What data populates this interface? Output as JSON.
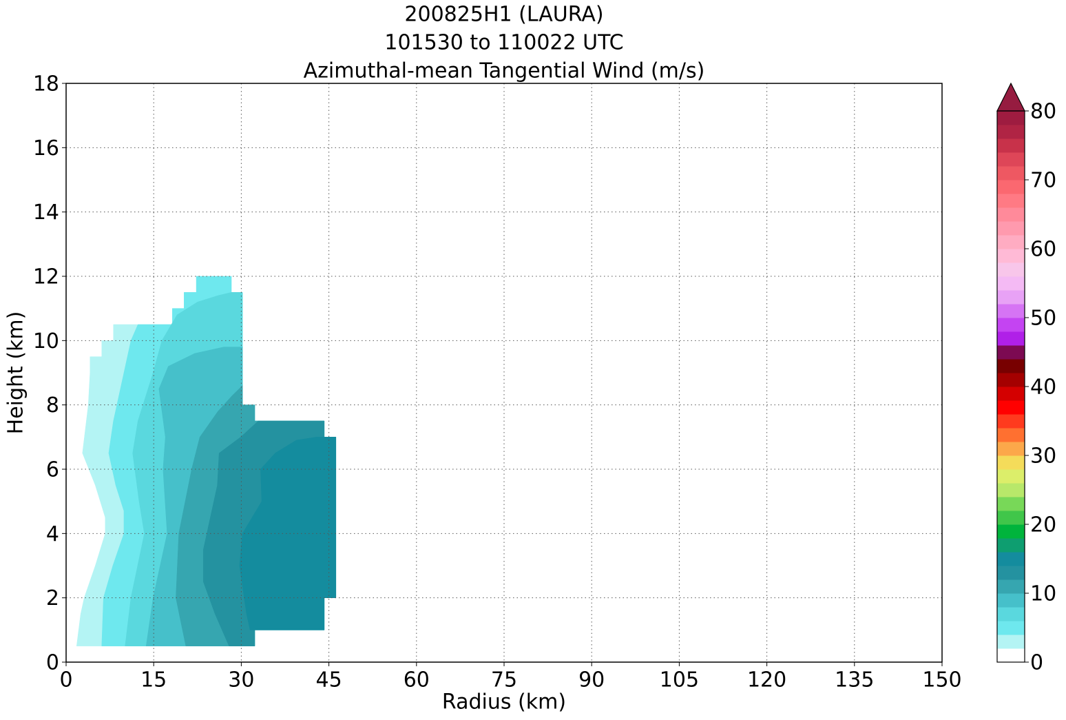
{
  "chart_data": {
    "type": "contourf",
    "title": [
      "200825H1 (LAURA)",
      "101530 to 110022 UTC",
      "Azimuthal-mean Tangential Wind (m/s)"
    ],
    "x_label": "Radius (km)",
    "y_label": "Height (km)",
    "xlim": [
      0,
      150
    ],
    "ylim": [
      0,
      18
    ],
    "xticks": [
      0,
      15,
      30,
      45,
      60,
      75,
      90,
      105,
      120,
      135,
      150
    ],
    "yticks": [
      0,
      2,
      4,
      6,
      8,
      10,
      12,
      14,
      16,
      18
    ],
    "grid": true,
    "colorbar": {
      "levels": [
        0,
        2,
        4,
        6,
        8,
        10,
        12,
        14,
        16,
        18,
        20,
        22,
        24,
        26,
        28,
        30,
        32,
        34,
        36,
        38,
        40,
        42,
        44,
        46,
        48,
        50,
        52,
        54,
        56,
        58,
        60,
        62,
        64,
        66,
        68,
        70,
        72,
        74,
        76,
        78,
        80
      ],
      "colors": [
        "#ffffff",
        "#b4f4f4",
        "#6ee8ee",
        "#5ad8de",
        "#46c0ca",
        "#36a6b0",
        "#2492a0",
        "#148c9e",
        "#0e9e70",
        "#00b43c",
        "#40c64a",
        "#78d858",
        "#b8e86a",
        "#dcee6a",
        "#f4dc5a",
        "#fca84a",
        "#ff7030",
        "#ff3a1e",
        "#ff0000",
        "#d40000",
        "#a40000",
        "#780000",
        "#7c0a52",
        "#b020e8",
        "#c444f2",
        "#d674f4",
        "#e8a2f6",
        "#f4baf4",
        "#f8c6ea",
        "#ffbad6",
        "#ffacc2",
        "#ff9aae",
        "#ff8a9a",
        "#ff7a84",
        "#fb6870",
        "#ee5862",
        "#de4658",
        "#c8324a",
        "#b02444",
        "#9e1c40"
      ],
      "extend_color": "#961c40",
      "ticks": [
        0,
        10,
        20,
        30,
        40,
        50,
        60,
        70,
        80
      ]
    },
    "regions": [
      {
        "level": 2,
        "r": [
          1.8,
          2.5,
          3.1,
          5,
          6.7,
          6.7,
          5,
          2.8,
          3.8,
          4.1,
          4.1,
          6.1,
          6.1,
          8.1,
          8.1,
          18.2,
          18.2,
          20.2,
          20.2,
          22.3,
          22.3,
          28.3,
          28.3,
          30.2,
          30.2,
          32.3,
          32.3,
          44.2,
          44.2,
          46.2,
          46.2,
          44.2,
          44.2,
          32.3,
          32.3
        ],
        "h": [
          0.5,
          1.5,
          2,
          3,
          4,
          4.5,
          5.5,
          6.5,
          8,
          9,
          9.5,
          9.5,
          10,
          10,
          10.5,
          10.5,
          11,
          11,
          11.5,
          11.5,
          12,
          12,
          11.5,
          11.5,
          8,
          8,
          7.5,
          7.5,
          7,
          7,
          2,
          2,
          1,
          1,
          0.5
        ]
      },
      {
        "level": 4,
        "r": [
          6.1,
          6.4,
          8,
          9.9,
          9.9,
          8.5,
          7.3,
          8.1,
          10.5,
          11.1,
          12.3,
          18.2,
          18.2,
          20.2,
          20.2,
          22.3,
          22.3,
          28.3,
          28.3,
          30.2,
          30.2,
          32.3,
          32.3,
          44.2,
          44.2,
          46.2,
          46.2,
          44.2,
          44.2,
          32.3,
          32.3
        ],
        "h": [
          0.5,
          2,
          3,
          4,
          4.7,
          5.5,
          6.5,
          7.5,
          9.5,
          10,
          10.5,
          10.5,
          11,
          11,
          11.5,
          11.5,
          12,
          12,
          11.5,
          11.5,
          8,
          8,
          7.5,
          7.5,
          7,
          7,
          2,
          2,
          1,
          1,
          0.5
        ]
      },
      {
        "level": 6,
        "r": [
          10.1,
          11.1,
          13.4,
          12.5,
          11.4,
          12.3,
          14.9,
          16.4,
          19,
          22.5,
          26,
          28.3,
          30.2,
          30.2,
          32.3,
          32.3,
          44.2,
          44.2,
          46.2,
          46.2,
          44.2,
          44.2,
          32.3,
          32.3
        ],
        "h": [
          0.5,
          2,
          4,
          5,
          6.5,
          7.5,
          9,
          10,
          10.8,
          11.2,
          11.4,
          11.5,
          11.5,
          8,
          8,
          7.5,
          7.5,
          7,
          7,
          2,
          2,
          1,
          1,
          0.5
        ]
      },
      {
        "level": 8,
        "r": [
          13.7,
          14.9,
          17.3,
          16.6,
          17,
          15.9,
          17.5,
          22,
          27,
          30.2,
          30.2,
          32.3,
          32.3,
          44.2,
          44.2,
          46.2,
          46.2,
          44.2,
          44.2,
          32.3,
          32.3
        ],
        "h": [
          0.5,
          2,
          4,
          6,
          7,
          8.5,
          9.2,
          9.6,
          9.8,
          9.8,
          8,
          8,
          7.5,
          7.5,
          7,
          7,
          2,
          2,
          1,
          1,
          0.5
        ]
      },
      {
        "level": 10,
        "r": [
          20.5,
          18.8,
          19.3,
          21.5,
          22.9,
          26,
          28.5,
          30.2,
          30.2,
          32.3,
          32.3,
          44.2,
          44.2,
          46.2,
          46.2,
          44.2,
          44.2,
          32.3,
          32.3
        ],
        "h": [
          0.5,
          2,
          4,
          6,
          7,
          7.8,
          8.3,
          8.6,
          8,
          8,
          7.5,
          7.5,
          7,
          7,
          2,
          2,
          1,
          1,
          0.5
        ]
      },
      {
        "level": 12,
        "r": [
          27.9,
          25.5,
          23.5,
          23.5,
          25.9,
          26.2,
          29.9,
          32.9,
          44.2,
          44.2,
          46.2,
          46.2,
          44.2,
          44.2,
          32.3,
          32.3
        ],
        "h": [
          0.5,
          1.5,
          2.5,
          3.5,
          5.5,
          6.5,
          7,
          7.5,
          7.5,
          7,
          7,
          2,
          2,
          1,
          1,
          0.5
        ]
      },
      {
        "level": 14,
        "r": [
          31.5,
          30.9,
          29.7,
          30.2,
          33.5,
          33.3,
          35.8,
          39.4,
          42.9,
          46.2,
          46.2,
          44.2,
          44.2
        ],
        "h": [
          1,
          1.5,
          3,
          4,
          5,
          6,
          6.5,
          6.9,
          7,
          7,
          2,
          2,
          1
        ]
      }
    ]
  }
}
